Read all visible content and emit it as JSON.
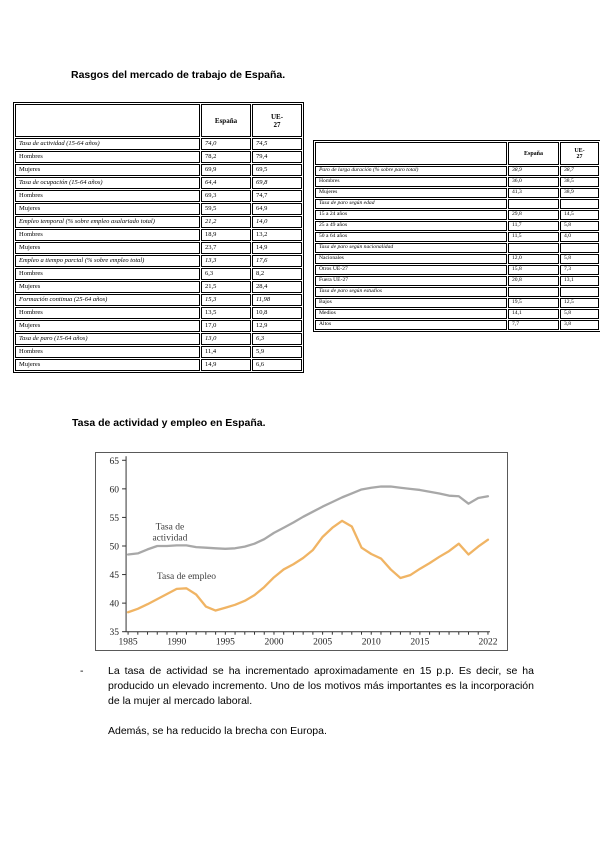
{
  "titles": {
    "main": "Rasgos del mercado de trabajo de España.",
    "chart": "Tasa de actividad y empleo en España."
  },
  "left_table": {
    "headers": [
      "",
      "España",
      "UE-\n27"
    ],
    "rows": [
      {
        "label": "Tasa de actividad (15-64 años)",
        "espana": "74,0",
        "ue": "74,5",
        "italic": true
      },
      {
        "label": "Hombres",
        "espana": "78,2",
        "ue": "79,4"
      },
      {
        "label": "Mujeres",
        "espana": "69,9",
        "ue": "69,5"
      },
      {
        "label": "Tasa de ocupación (15-64 años)",
        "espana": "64,4",
        "ue": "69,8",
        "italic": true
      },
      {
        "label": "Hombres",
        "espana": "69,3",
        "ue": "74,7"
      },
      {
        "label": "Mujeres",
        "espana": "59,5",
        "ue": "64,9"
      },
      {
        "label": "Empleo temporal (% sobre empleo asalariado total)",
        "espana": "21,2",
        "ue": "14,0",
        "italic": true
      },
      {
        "label": "Hombres",
        "espana": "18,9",
        "ue": "13,2"
      },
      {
        "label": "Mujeres",
        "espana": "23,7",
        "ue": "14,9"
      },
      {
        "label": "Empleo a tiempo parcial (% sobre empleo total)",
        "espana": "13,3",
        "ue": "17,6",
        "italic": true
      },
      {
        "label": "Hombres",
        "espana": "6,3",
        "ue": "8,2"
      },
      {
        "label": "Mujeres",
        "espana": "21,5",
        "ue": "28,4"
      },
      {
        "label": "Formación continua (25-64 años)",
        "espana": "15,3",
        "ue": "11,98",
        "italic": true
      },
      {
        "label": "Hombres",
        "espana": "13,5",
        "ue": "10,8"
      },
      {
        "label": "Mujeres",
        "espana": "17,0",
        "ue": "12,9"
      },
      {
        "label": "Tasa de paro (15-64 años)",
        "espana": "13,0",
        "ue": "6,3",
        "italic": true
      },
      {
        "label": "Hombres",
        "espana": "11,4",
        "ue": "5,9"
      },
      {
        "label": "Mujeres",
        "espana": "14,9",
        "ue": "6,6"
      }
    ]
  },
  "right_table": {
    "headers": [
      "",
      "España",
      "UE-\n27"
    ],
    "rows": [
      {
        "label": "Paro de larga duración (% sobre paro total)",
        "espana": "38,9",
        "ue": "38,7",
        "italic": true
      },
      {
        "label": "Hombres",
        "espana": "36,0",
        "ue": "38,5"
      },
      {
        "label": "Mujeres",
        "espana": "41,3",
        "ue": "38,9"
      },
      {
        "label": "Tasa de paro según edad",
        "espana": "",
        "ue": "",
        "italic": true
      },
      {
        "label": "15 a 24 años",
        "espana": "29,8",
        "ue": "14,5"
      },
      {
        "label": "25 a 49 años",
        "espana": "11,7",
        "ue": "5,8"
      },
      {
        "label": "50 a 64 años",
        "espana": "11,5",
        "ue": "4,0"
      },
      {
        "label": "Tasa de paro según nacionalidad",
        "espana": "",
        "ue": "",
        "italic": true
      },
      {
        "label": "Nacionales",
        "espana": "12,0",
        "ue": "5,8"
      },
      {
        "label": "Otros UE-27",
        "espana": "15,8",
        "ue": "7,3"
      },
      {
        "label": "Fuera UE-27",
        "espana": "20,8",
        "ue": "13,1"
      },
      {
        "label": "Tasa de paro según estudios",
        "espana": "",
        "ue": "",
        "italic": true
      },
      {
        "label": "Bajos",
        "espana": "19,5",
        "ue": "12,5"
      },
      {
        "label": "Medios",
        "espana": "14,1",
        "ue": "5,8"
      },
      {
        "label": "Altos",
        "espana": "7,7",
        "ue": "3,8"
      }
    ]
  },
  "chart_data": {
    "type": "line",
    "title": "Tasa de actividad y empleo en España.",
    "xlabel": "",
    "ylabel": "",
    "xlim": [
      1985,
      2022
    ],
    "ylim": [
      35,
      65
    ],
    "yticks": [
      35,
      40,
      45,
      50,
      55,
      60,
      65
    ],
    "xticks": [
      1985,
      1990,
      1995,
      2000,
      2005,
      2010,
      2015,
      2022
    ],
    "grid": false,
    "legend_position": "inline-annotations",
    "x": [
      1985,
      1986,
      1987,
      1988,
      1989,
      1990,
      1991,
      1992,
      1993,
      1994,
      1995,
      1996,
      1997,
      1998,
      1999,
      2000,
      2001,
      2002,
      2003,
      2004,
      2005,
      2006,
      2007,
      2008,
      2009,
      2010,
      2011,
      2012,
      2013,
      2014,
      2015,
      2016,
      2017,
      2018,
      2019,
      2020,
      2021,
      2022
    ],
    "series": [
      {
        "name": "Tasa de actividad",
        "color": "#a8a8a8",
        "values": [
          48.5,
          48.7,
          49.4,
          50.0,
          50.0,
          50.1,
          50.1,
          49.8,
          49.7,
          49.6,
          49.5,
          49.6,
          49.9,
          50.4,
          51.2,
          52.3,
          53.2,
          54.1,
          55.1,
          56.0,
          56.9,
          57.7,
          58.5,
          59.2,
          59.9,
          60.2,
          60.4,
          60.4,
          60.2,
          60.0,
          59.8,
          59.5,
          59.2,
          58.8,
          58.7,
          57.4,
          58.4,
          58.7
        ]
      },
      {
        "name": "Tasa de empleo",
        "color": "#f0b464",
        "values": [
          38.4,
          39.0,
          39.8,
          40.7,
          41.6,
          42.5,
          42.6,
          41.5,
          39.4,
          38.7,
          39.2,
          39.7,
          40.4,
          41.4,
          42.8,
          44.5,
          45.9,
          46.8,
          47.9,
          49.3,
          51.6,
          53.2,
          54.4,
          53.4,
          49.7,
          48.6,
          47.8,
          45.9,
          44.4,
          44.9,
          46.0,
          47.0,
          48.1,
          49.1,
          50.4,
          48.5,
          49.9,
          51.1
        ]
      }
    ],
    "annotations": [
      {
        "text": "Tasa de\nactividad",
        "year": 1989.3,
        "value": 52.9
      },
      {
        "text": "Tasa de empleo",
        "year": 1991.0,
        "value": 44.2
      }
    ]
  },
  "notes": {
    "bullet": "-",
    "p1": "La tasa de actividad se ha incrementado aproximadamente en 15 p.p. Es decir, se ha producido un elevado incremento. Uno de los motivos más importantes es la incorporación de la mujer al mercado laboral.",
    "p2": "Además, se ha reducido la brecha con Europa."
  }
}
